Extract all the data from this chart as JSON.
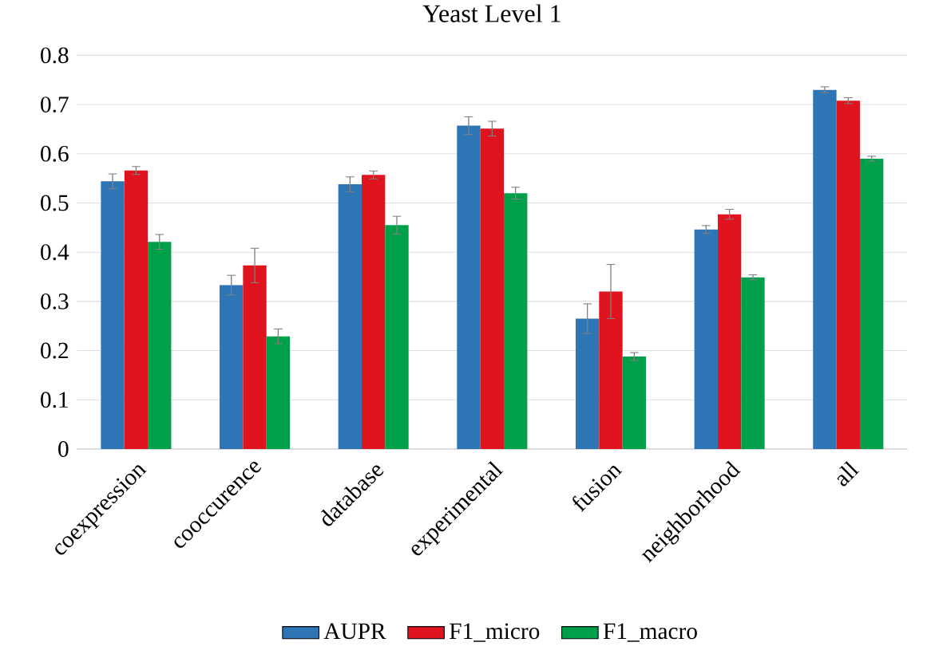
{
  "chart_data": {
    "type": "bar",
    "title": "Yeast Level 1",
    "categories": [
      "coexpression",
      "cooccurence",
      "database",
      "experimental",
      "fusion",
      "neighborhood",
      "all"
    ],
    "series": [
      {
        "name": "AUPR",
        "color": "#2e75b6",
        "values": [
          0.544,
          0.333,
          0.538,
          0.657,
          0.265,
          0.446,
          0.73
        ],
        "errors": [
          0.015,
          0.02,
          0.015,
          0.018,
          0.03,
          0.008,
          0.006
        ]
      },
      {
        "name": "F1_micro",
        "color": "#e0141e",
        "values": [
          0.566,
          0.373,
          0.557,
          0.651,
          0.32,
          0.477,
          0.708
        ],
        "errors": [
          0.008,
          0.035,
          0.008,
          0.015,
          0.055,
          0.01,
          0.006
        ]
      },
      {
        "name": "F1_macro",
        "color": "#00a04a",
        "values": [
          0.421,
          0.229,
          0.455,
          0.52,
          0.188,
          0.349,
          0.59
        ],
        "errors": [
          0.015,
          0.015,
          0.018,
          0.012,
          0.008,
          0.005,
          0.005
        ]
      }
    ],
    "ylim": [
      0,
      0.8
    ],
    "yticks": [
      0,
      0.1,
      0.2,
      0.3,
      0.4,
      0.5,
      0.6,
      0.7,
      0.8
    ],
    "grid": "y",
    "legend": "bottom"
  }
}
